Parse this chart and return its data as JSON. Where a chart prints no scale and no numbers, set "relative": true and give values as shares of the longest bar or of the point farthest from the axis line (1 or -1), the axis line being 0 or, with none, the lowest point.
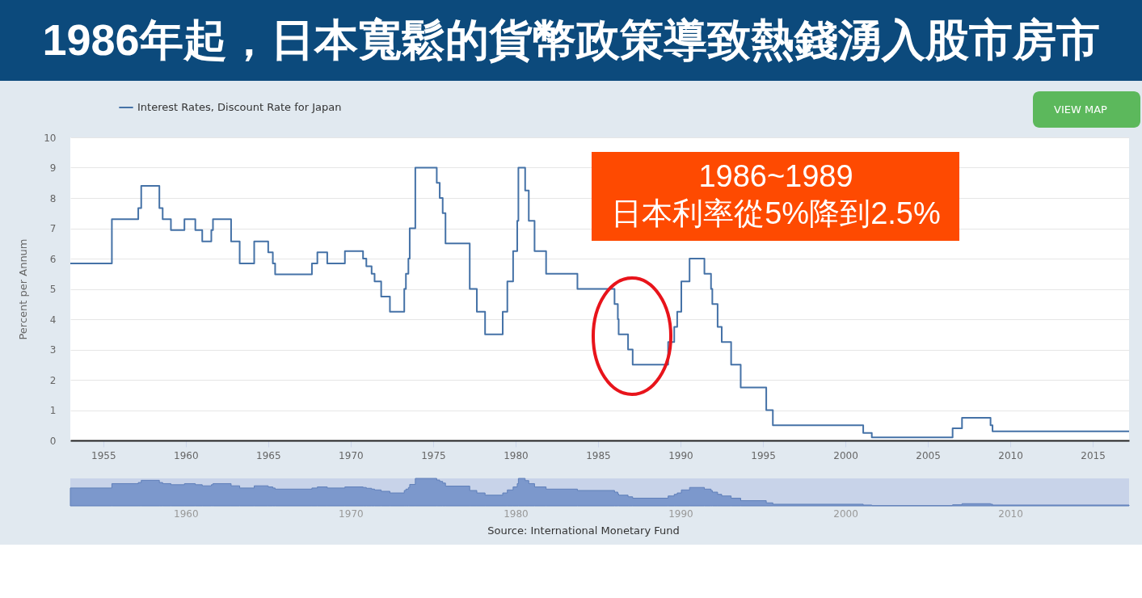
{
  "chart_data": [
    {
      "type": "step",
      "title": "1986年起，日本寬鬆的貨幣政策導致熱錢湧入股市房市",
      "ylabel": "Percent per Annum",
      "annotations": [
        "1986~1989",
        "日本利率從5%降到2.5%",
        "VIEW MAP",
        "Source: International Monetary Fund"
      ],
      "series": [
        {
          "name": "Interest Rates, Discount Rate for Japan",
          "color": "#4572a7",
          "x": [
            1953,
            1955.52,
            1957.12,
            1957.3,
            1958.4,
            1958.6,
            1959.1,
            1959.92,
            1960.58,
            1961.0,
            1961.55,
            1961.65,
            1962.75,
            1963.27,
            1964.15,
            1965.0,
            1965.28,
            1965.42,
            1967.65,
            1967.98,
            1968.58,
            1969.65,
            1970.75,
            1970.95,
            1971.27,
            1971.45,
            1971.85,
            1972.38,
            1973.25,
            1973.35,
            1973.5,
            1973.58,
            1973.92,
            1975.22,
            1975.4,
            1975.58,
            1975.75,
            1977.22,
            1977.65,
            1978.15,
            1979.22,
            1979.5,
            1979.85,
            1980.1,
            1980.17,
            1980.58,
            1980.8,
            1981.15,
            1981.85,
            1983.75,
            1986.0,
            1986.2,
            1986.25,
            1986.82,
            1987.1,
            1989.25,
            1989.62,
            1989.8,
            1990.05,
            1990.55,
            1991.45,
            1991.85,
            1991.93,
            1992.25,
            1992.5,
            1993.07,
            1993.65,
            1995.2,
            1995.6,
            2001.08,
            2001.6,
            2006.5,
            2007.07,
            2008.8,
            2008.92,
            2017.2
          ],
          "values": [
            5.84,
            7.3,
            7.67,
            8.4,
            7.67,
            7.3,
            6.94,
            7.3,
            6.94,
            6.57,
            6.94,
            7.3,
            6.57,
            5.84,
            6.57,
            6.21,
            5.84,
            5.48,
            5.84,
            6.21,
            5.84,
            6.25,
            6.0,
            5.75,
            5.5,
            5.25,
            4.75,
            4.25,
            5.0,
            5.5,
            6.0,
            7.0,
            9.0,
            8.5,
            8.0,
            7.5,
            6.5,
            5.0,
            4.25,
            3.5,
            4.25,
            5.25,
            6.25,
            7.25,
            9.0,
            8.25,
            7.25,
            6.25,
            5.5,
            5.0,
            4.5,
            4.0,
            3.5,
            3.0,
            2.5,
            3.25,
            3.75,
            4.25,
            5.25,
            6.0,
            5.5,
            5.0,
            4.5,
            3.75,
            3.25,
            2.5,
            1.75,
            1.0,
            0.5,
            0.25,
            0.1,
            0.4,
            0.75,
            0.5,
            0.3,
            0.3
          ]
        }
      ],
      "xlim": [
        1953,
        2017.2
      ],
      "xticks": [
        1955,
        1960,
        1965,
        1970,
        1975,
        1980,
        1985,
        1990,
        1995,
        2000,
        2005,
        2010,
        2015
      ],
      "ylim": [
        0,
        10
      ],
      "yticks": [
        0,
        1,
        2,
        3,
        4,
        5,
        6,
        7,
        8,
        9,
        10
      ],
      "grid": "y",
      "legend": "top left"
    },
    {
      "type": "area",
      "relative": true,
      "color": "#7c98cc",
      "x": [
        1953,
        1955.52,
        1957.12,
        1957.3,
        1958.4,
        1958.6,
        1959.1,
        1959.92,
        1960.58,
        1961.0,
        1961.55,
        1961.65,
        1962.75,
        1963.27,
        1964.15,
        1965.0,
        1965.28,
        1965.42,
        1967.65,
        1967.98,
        1968.58,
        1969.65,
        1970.75,
        1970.95,
        1971.27,
        1971.45,
        1971.85,
        1972.38,
        1973.25,
        1973.35,
        1973.5,
        1973.58,
        1973.92,
        1975.22,
        1975.4,
        1975.58,
        1975.75,
        1977.22,
        1977.65,
        1978.15,
        1979.22,
        1979.5,
        1979.85,
        1980.1,
        1980.17,
        1980.58,
        1980.8,
        1981.15,
        1981.85,
        1983.75,
        1986.0,
        1986.2,
        1986.25,
        1986.82,
        1987.1,
        1989.25,
        1989.62,
        1989.8,
        1990.05,
        1990.55,
        1991.45,
        1991.85,
        1991.93,
        1992.25,
        1992.5,
        1993.07,
        1993.65,
        1995.2,
        1995.6,
        2001.08,
        2001.6,
        2006.5,
        2007.07,
        2008.8,
        2008.92,
        2017.2
      ],
      "values": [
        0.65,
        0.81,
        0.85,
        0.93,
        0.85,
        0.81,
        0.77,
        0.81,
        0.77,
        0.73,
        0.77,
        0.81,
        0.73,
        0.65,
        0.73,
        0.69,
        0.65,
        0.61,
        0.65,
        0.69,
        0.65,
        0.69,
        0.67,
        0.64,
        0.61,
        0.58,
        0.53,
        0.47,
        0.56,
        0.61,
        0.67,
        0.78,
        1,
        0.94,
        0.89,
        0.83,
        0.72,
        0.56,
        0.47,
        0.39,
        0.47,
        0.58,
        0.69,
        0.81,
        1,
        0.92,
        0.81,
        0.69,
        0.61,
        0.56,
        0.5,
        0.44,
        0.39,
        0.33,
        0.28,
        0.36,
        0.42,
        0.47,
        0.58,
        0.67,
        0.61,
        0.56,
        0.5,
        0.42,
        0.36,
        0.28,
        0.19,
        0.11,
        0.06,
        0.03,
        0.01,
        0.04,
        0.08,
        0.06,
        0.03,
        0.03
      ],
      "xlim": [
        1953,
        2017.2
      ],
      "xticks": [
        1960,
        1970,
        1980,
        1990,
        2000,
        2010
      ],
      "tick_labels": "x"
    }
  ]
}
